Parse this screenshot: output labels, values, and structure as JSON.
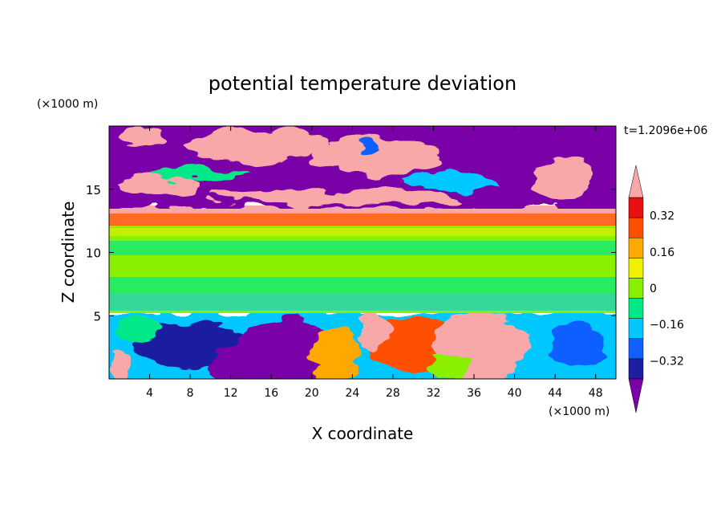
{
  "chart_data": {
    "type": "heatmap",
    "title": "potential temperature deviation",
    "xlabel": "X coordinate",
    "ylabel": "Z coordinate",
    "x_unit": "(×1000 m)",
    "y_unit": "(×1000 m)",
    "time_label": "t=1.2096e+06",
    "xlim": [
      0,
      50
    ],
    "ylim": [
      0,
      20
    ],
    "x_ticks": [
      4,
      8,
      12,
      16,
      20,
      24,
      28,
      32,
      36,
      40,
      44,
      48
    ],
    "y_ticks": [
      5,
      10,
      15
    ],
    "colorbar": {
      "levels": [
        -0.4,
        -0.32,
        -0.24,
        -0.16,
        -0.08,
        0,
        0.08,
        0.16,
        0.24,
        0.32,
        0.4
      ],
      "tick_labels": [
        "0.32",
        "0.16",
        "0",
        "-0.16",
        "-0.32"
      ],
      "tick_values": [
        0.32,
        0.16,
        0,
        -0.16,
        -0.32
      ],
      "colors": [
        "#7a00a8",
        "#1e1ea0",
        "#1060ff",
        "#00c8ff",
        "#00e888",
        "#88f000",
        "#f0f000",
        "#ffa800",
        "#ff5000",
        "#e81010",
        "#f8a8a8"
      ],
      "extend": "both"
    },
    "layers": [
      {
        "z_range": [
          18.5,
          20
        ],
        "description": "mixed purple and pink upper layer",
        "values": [
          -0.45,
          0.45
        ]
      },
      {
        "z_range": [
          13,
          18.5
        ],
        "description": "purple with pink patches",
        "values": [
          -0.45,
          0.45
        ]
      },
      {
        "z_range": [
          12.5,
          13
        ],
        "description": "pink/red band",
        "values": [
          0.3,
          0.45
        ]
      },
      {
        "z_range": [
          5.3,
          12.5
        ],
        "description": "green / lime middle layer",
        "values": [
          -0.05,
          0.1
        ]
      },
      {
        "z_range": [
          0,
          5.3
        ],
        "description": "turbulent lower layer with blue and pink plumes",
        "values": [
          -0.45,
          0.45
        ]
      }
    ]
  }
}
